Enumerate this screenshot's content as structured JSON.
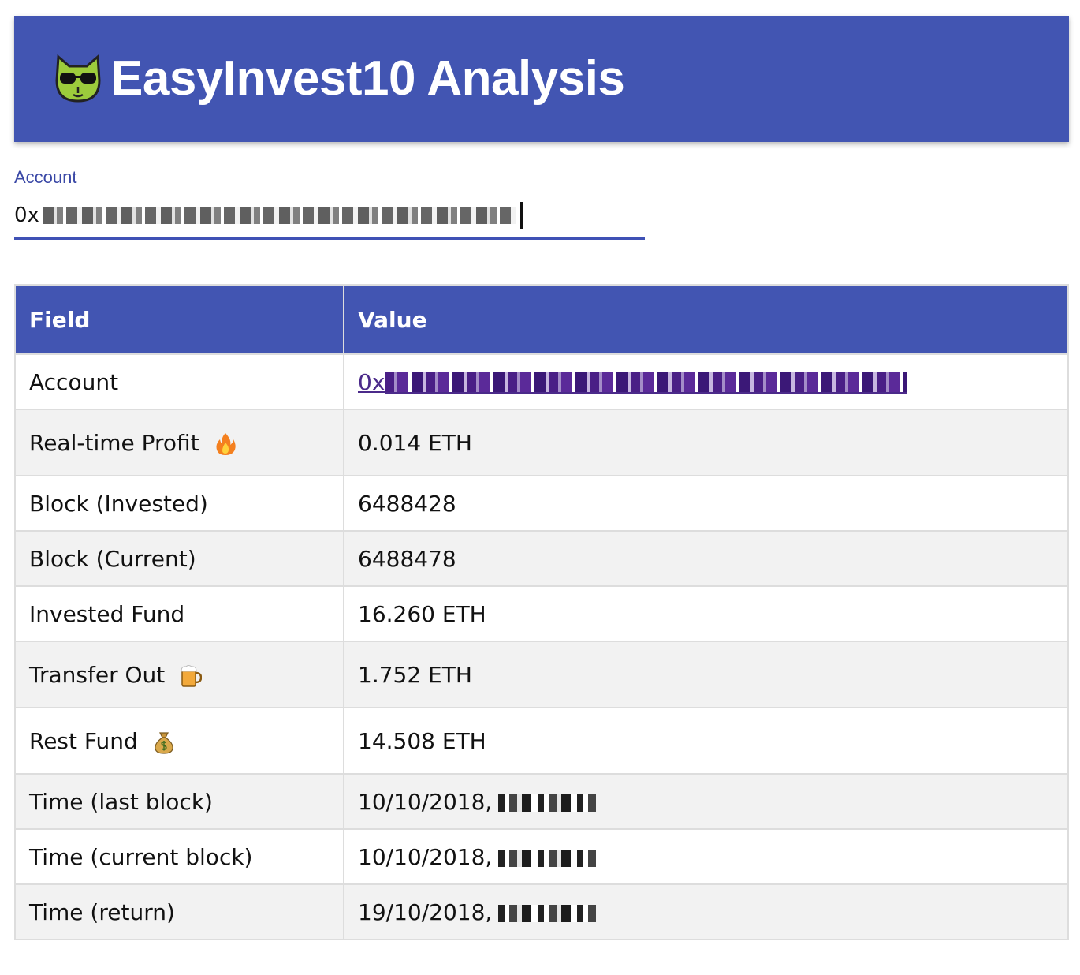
{
  "header": {
    "title": "EasyInvest10 Analysis",
    "logo_icon": "cat-sunglasses-icon"
  },
  "account_field": {
    "label": "Account",
    "value_prefix": "0x"
  },
  "table": {
    "headers": [
      "Field",
      "Value"
    ],
    "rows": [
      {
        "field": "Account",
        "value": "0x",
        "icon": ""
      },
      {
        "field": "Real-time Profit",
        "value": "0.014 ETH",
        "icon": "fire-icon"
      },
      {
        "field": "Block (Invested)",
        "value": "6488428",
        "icon": ""
      },
      {
        "field": "Block (Current)",
        "value": "6488478",
        "icon": ""
      },
      {
        "field": "Invested Fund",
        "value": "16.260 ETH",
        "icon": ""
      },
      {
        "field": "Transfer Out",
        "value": "1.752 ETH",
        "icon": "beer-mug-icon"
      },
      {
        "field": "Rest Fund",
        "value": "14.508 ETH",
        "icon": "money-bag-icon"
      },
      {
        "field": "Time (last block)",
        "value": "10/10/2018,",
        "icon": ""
      },
      {
        "field": "Time (current block)",
        "value": "10/10/2018,",
        "icon": ""
      },
      {
        "field": "Time (return)",
        "value": "19/10/2018,",
        "icon": ""
      }
    ]
  },
  "colors": {
    "primary": "#4255b2",
    "link": "#4b2a8a",
    "row_alt": "#f2f2f2"
  }
}
